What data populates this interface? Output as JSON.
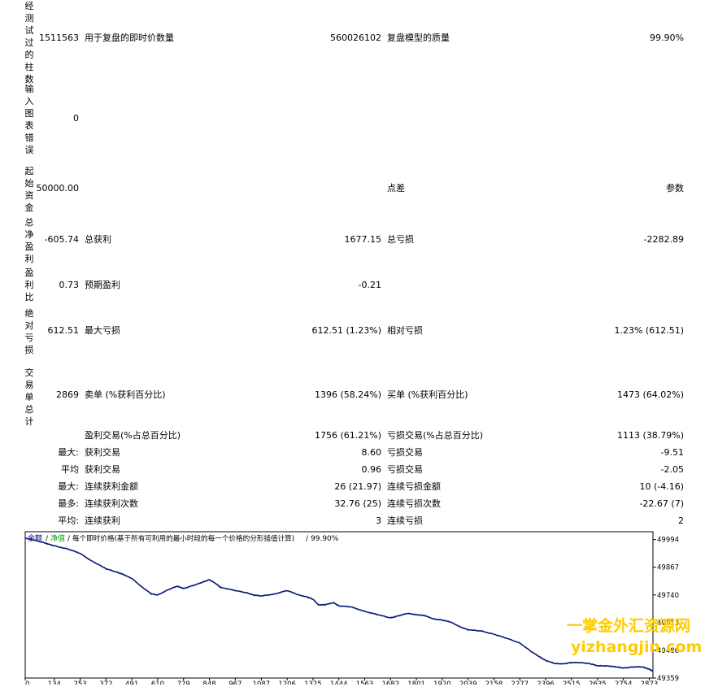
{
  "rows": [
    {
      "vlabel": "经测试过的柱数",
      "value": "1511563",
      "l1": "用于复盘的即时价数量",
      "v1": "560026102",
      "l2": "复盘模型的质量",
      "v2": "99.90%"
    },
    {
      "vlabel": "输入图表错误",
      "value": "0",
      "l1": "",
      "v1": "",
      "l2": "",
      "v2": ""
    },
    {
      "vlabel": "起始资金",
      "value": "50000.00",
      "l1": "",
      "v1": "",
      "l2": "点差",
      "v2": "参数"
    },
    {
      "vlabel": "总净盈利",
      "value": "-605.74",
      "l1": "总获利",
      "v1": "1677.15",
      "l2": "总亏损",
      "v2": "-2282.89"
    },
    {
      "vlabel": "盈利比",
      "value": "0.73",
      "l1": "预期盈利",
      "v1": "-0.21",
      "l2": "",
      "v2": ""
    },
    {
      "vlabel": "绝对亏损",
      "value": "612.51",
      "l1": "最大亏损",
      "v1": "612.51 (1.23%)",
      "l2": "相对亏损",
      "v2": "1.23% (612.51)"
    },
    {
      "vlabel": "交易单总计",
      "value": "2869",
      "l1": "卖单 (%获利百分比)",
      "v1": "1396 (58.24%)",
      "l2": "买单 (%获利百分比)",
      "v2": "1473 (64.02%)"
    }
  ],
  "srows": [
    {
      "p": "",
      "l1": "盈利交易(%占总百分比)",
      "v1": "1756 (61.21%)",
      "l2": "亏损交易(%占总百分比)",
      "v2": "1113 (38.79%)"
    },
    {
      "p": "最大:",
      "l1": "获利交易",
      "v1": "8.60",
      "l2": "亏损交易",
      "v2": "-9.51"
    },
    {
      "p": "平均",
      "l1": "获利交易",
      "v1": "0.96",
      "l2": "亏损交易",
      "v2": "-2.05"
    },
    {
      "p": "最大:",
      "l1": "连续获利金额",
      "v1": "26 (21.97)",
      "l2": "连续亏损金额",
      "v2": "10 (-4.16)"
    },
    {
      "p": "最多:",
      "l1": "连续获利次数",
      "v1": "32.76 (25)",
      "l2": "连续亏损次数",
      "v2": "-22.67 (7)"
    },
    {
      "p": "平均:",
      "l1": "连续获利",
      "v1": "3",
      "l2": "连续亏损",
      "v2": "2"
    }
  ],
  "chart_header": {
    "balance": "余额",
    "sep1": "/",
    "equity": "净值",
    "sep2": "/",
    "desc": "每个即时价格(基于所有可利用的最小时段的每一个价格的分形插值计算)",
    "sep3": "/",
    "quality": "99.90%"
  },
  "watermark": {
    "line1": "一掌金外汇资源网",
    "line2": "yizhangjin.com"
  },
  "colors": {
    "balance": "#000080",
    "equity": "#00a000",
    "line": "#0a1a7a",
    "watermark": "#ffcc00"
  },
  "chart_data": {
    "type": "line",
    "x_ticks": [
      "0",
      "134",
      "253",
      "372",
      "491",
      "610",
      "729",
      "848",
      "967",
      "1087",
      "1206",
      "1325",
      "1444",
      "1563",
      "1682",
      "1801",
      "1920",
      "2039",
      "2158",
      "2277",
      "2396",
      "2515",
      "2635",
      "2754",
      "2873"
    ],
    "y_ticks": [
      "49994",
      "49867",
      "49740",
      "49613",
      "49486",
      "49359"
    ],
    "ylim": [
      49359,
      50030
    ],
    "series": [
      {
        "name": "余额",
        "x": [
          0,
          50,
          100,
          134,
          200,
          253,
          300,
          372,
          420,
          450,
          491,
          540,
          580,
          610,
          660,
          700,
          729,
          780,
          820,
          848,
          880,
          900,
          967,
          1020,
          1050,
          1087,
          1150,
          1206,
          1260,
          1300,
          1325,
          1350,
          1380,
          1420,
          1444,
          1500,
          1563,
          1620,
          1682,
          1720,
          1760,
          1801,
          1840,
          1880,
          1920,
          1960,
          2000,
          2039,
          2100,
          2158,
          2220,
          2277,
          2330,
          2370,
          2396,
          2440,
          2480,
          2515,
          2560,
          2600,
          2635,
          2680,
          2720,
          2754,
          2800,
          2840,
          2873,
          2890
        ],
        "y": [
          50000,
          49990,
          49975,
          49965,
          49950,
          49930,
          49900,
          49860,
          49845,
          49835,
          49815,
          49775,
          49745,
          49740,
          49765,
          49780,
          49770,
          49785,
          49800,
          49810,
          49790,
          49775,
          49760,
          49750,
          49740,
          49735,
          49745,
          49760,
          49740,
          49730,
          49720,
          49695,
          49695,
          49705,
          49690,
          49685,
          49665,
          49650,
          49635,
          49645,
          49655,
          49650,
          49645,
          49630,
          49625,
          49615,
          49595,
          49580,
          49575,
          49560,
          49540,
          49520,
          49480,
          49455,
          49440,
          49425,
          49425,
          49430,
          49430,
          49425,
          49415,
          49415,
          49410,
          49405,
          49410,
          49410,
          49400,
          49390
        ]
      }
    ]
  }
}
